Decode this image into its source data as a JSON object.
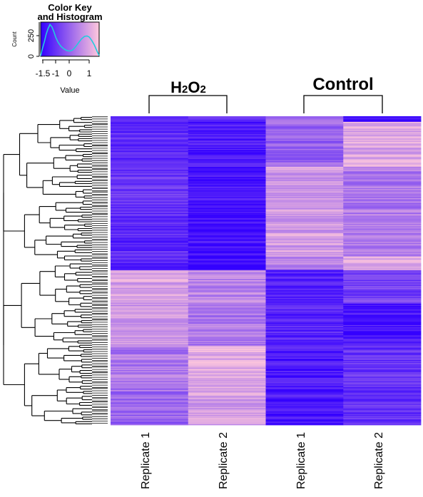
{
  "chart_data": [
    {
      "type": "histogram",
      "title_lines": [
        "Color Key",
        "and Histogram"
      ],
      "xlabel": "Value",
      "ylabel": "Count",
      "x_ticks": [
        "-1.5",
        "-1",
        "0",
        "1"
      ],
      "x_tick_values": [
        -1.5,
        -1,
        0,
        1
      ],
      "y_ticks": [
        "0",
        "250"
      ],
      "y_tick_values": [
        0,
        250
      ],
      "xlim": [
        -1.5,
        1.5
      ],
      "ylim": [
        0,
        420
      ],
      "colorscale": [
        "#3300ff",
        "#ffc8dc"
      ],
      "trace_color": "#22ccdd",
      "trace": [
        [
          -1.5,
          5
        ],
        [
          -1.45,
          60
        ],
        [
          -1.38,
          120
        ],
        [
          -1.3,
          190
        ],
        [
          -1.22,
          270
        ],
        [
          -1.12,
          340
        ],
        [
          -1.02,
          390
        ],
        [
          -0.92,
          360
        ],
        [
          -0.82,
          300
        ],
        [
          -0.72,
          230
        ],
        [
          -0.6,
          170
        ],
        [
          -0.45,
          120
        ],
        [
          -0.3,
          90
        ],
        [
          -0.15,
          70
        ],
        [
          0.0,
          65
        ],
        [
          0.15,
          80
        ],
        [
          0.3,
          120
        ],
        [
          0.45,
          170
        ],
        [
          0.6,
          215
        ],
        [
          0.75,
          245
        ],
        [
          0.88,
          250
        ],
        [
          1.0,
          235
        ],
        [
          1.12,
          195
        ],
        [
          1.25,
          140
        ],
        [
          1.38,
          70
        ],
        [
          1.5,
          10
        ]
      ]
    },
    {
      "type": "heatmap",
      "group_labels": [
        {
          "parts": [
            [
              "H",
              false
            ],
            [
              "2",
              true
            ],
            [
              "O",
              false
            ],
            [
              "2",
              true
            ]
          ]
        },
        {
          "parts": [
            [
              "Control",
              false
            ]
          ]
        }
      ],
      "columns": [
        "Replicate 1",
        "Replicate 2",
        "Replicate 1",
        "Replicate 2"
      ],
      "column_groups": [
        0,
        0,
        1,
        1
      ],
      "value_range": [
        -1.5,
        1.5
      ],
      "colorscale": [
        "#3300ff",
        "#ffc8dc"
      ],
      "row_blocks": [
        {
          "rows": 5,
          "values": [
            -0.9,
            -0.6,
            0.3,
            -1.4
          ]
        },
        {
          "rows": 40,
          "values": [
            -0.8,
            -1.1,
            0.0,
            1.0
          ]
        },
        {
          "rows": 50,
          "values": [
            -0.7,
            -1.2,
            0.8,
            0.3
          ]
        },
        {
          "rows": 30,
          "values": [
            -0.9,
            -1.3,
            0.9,
            0.4
          ]
        },
        {
          "rows": 12,
          "values": [
            -1.0,
            -1.4,
            0.4,
            1.1
          ]
        },
        {
          "rows": 30,
          "values": [
            0.9,
            0.5,
            -1.0,
            -0.5
          ]
        },
        {
          "rows": 38,
          "values": [
            0.7,
            0.3,
            -0.9,
            -1.2
          ]
        },
        {
          "rows": 40,
          "values": [
            0.3,
            1.1,
            -1.1,
            -0.7
          ]
        },
        {
          "rows": 30,
          "values": [
            0.0,
            0.9,
            -1.2,
            -0.8
          ]
        }
      ]
    }
  ]
}
